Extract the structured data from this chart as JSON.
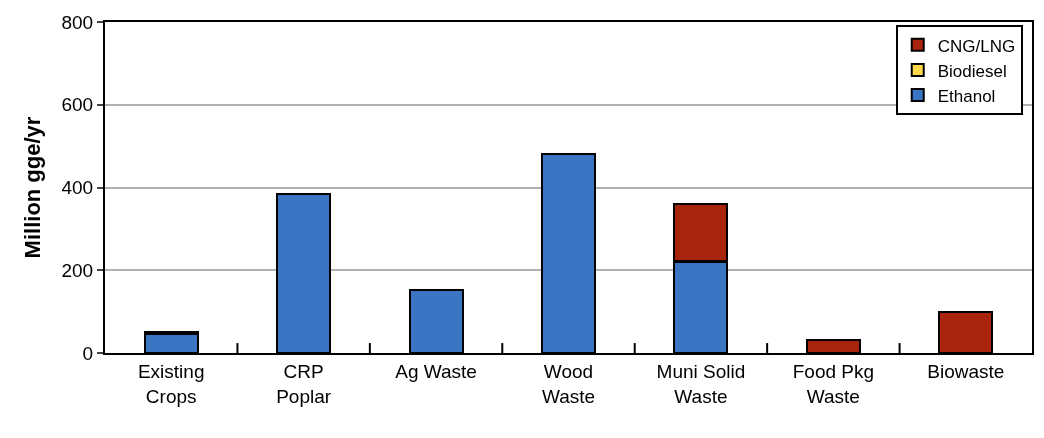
{
  "chart_data": {
    "type": "bar",
    "stacked": true,
    "ylabel": "Million gge/yr",
    "categories": [
      "Existing\nCrops",
      "CRP\nPoplar",
      "Ag Waste",
      "Wood\nWaste",
      "Muni Solid\nWaste",
      "Food Pkg\nWaste",
      "Biowaste"
    ],
    "series": [
      {
        "name": "Ethanol",
        "color": "#3a75c4",
        "values": [
          45,
          384,
          152,
          480,
          220,
          null,
          null
        ]
      },
      {
        "name": "Biodiesel",
        "color": "#ffd94a",
        "values": [
          5,
          null,
          null,
          null,
          3,
          null,
          null
        ]
      },
      {
        "name": "CNG/LNG",
        "color": "#a8240c",
        "values": [
          null,
          null,
          null,
          null,
          137,
          31,
          99
        ]
      }
    ],
    "ylim": [
      0,
      800
    ],
    "yticks": [
      0,
      200,
      400,
      600,
      800
    ],
    "grid": "y",
    "legend": "top right"
  }
}
